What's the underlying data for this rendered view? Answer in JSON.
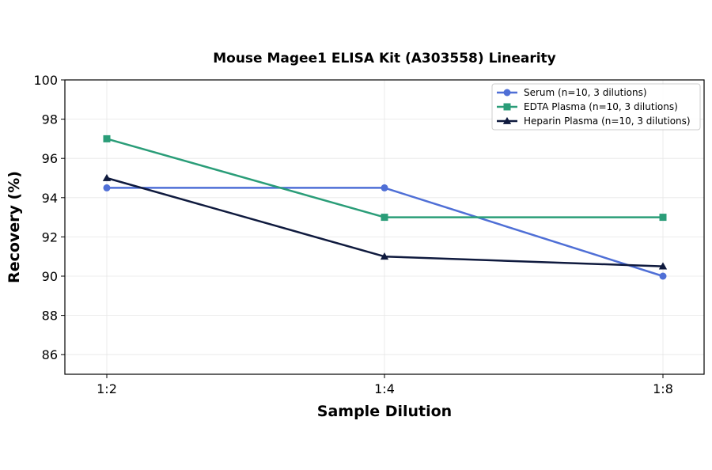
{
  "chart_data": {
    "type": "line",
    "title": "Mouse Magee1 ELISA Kit (A303558) Linearity",
    "xlabel": "Sample Dilution",
    "ylabel": "Recovery (%)",
    "categories": [
      "1:2",
      "1:4",
      "1:8"
    ],
    "ylim": [
      85,
      100
    ],
    "yticks": [
      86,
      88,
      90,
      92,
      94,
      96,
      98,
      100
    ],
    "grid": true,
    "legend_position": "top-right",
    "series": [
      {
        "name": "Serum (n=10, 3 dilutions)",
        "values": [
          94.5,
          94.5,
          90.0
        ],
        "color": "#4f6fd6",
        "marker": "circle"
      },
      {
        "name": "EDTA Plasma (n=10, 3 dilutions)",
        "values": [
          97.0,
          93.0,
          93.0
        ],
        "color": "#2a9d78",
        "marker": "square"
      },
      {
        "name": "Heparin Plasma (n=10, 3 dilutions)",
        "values": [
          95.0,
          91.0,
          90.5
        ],
        "color": "#0f1a3e",
        "marker": "triangle"
      }
    ]
  }
}
